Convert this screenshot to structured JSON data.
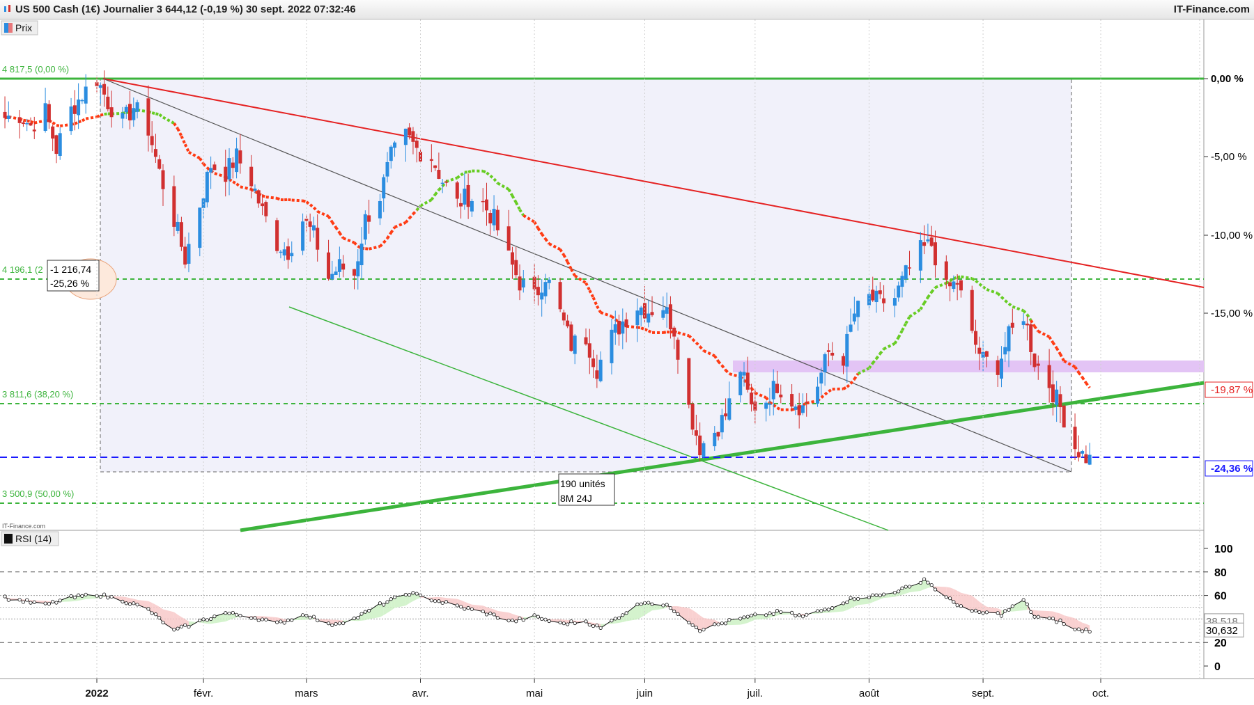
{
  "window": {
    "title": "US 500 Cash (1€) Journalier 3 644,12 (-0,19 %) 30 sept. 2022 07:32:46",
    "brand": "IT-Finance.com"
  },
  "price_panel": {
    "legend_label": "Prix",
    "watermark": "IT-Finance.com",
    "fib_levels": [
      {
        "label": "4 817,5 (0,00 %)",
        "value": 4817.5,
        "right_label": "0,00 %"
      },
      {
        "label": "4 196,1 (2",
        "value": 4196.1
      },
      {
        "label": "3 811,6 (38,20 %)",
        "value": 3811.6
      },
      {
        "label": "3 500,9 (50,00 %)",
        "value": 3500.9
      }
    ],
    "pct_axis": [
      "0,00 %",
      "-5,00 %",
      "-10,00 %",
      "-15,00 %",
      "-19,87 %",
      "-24,36 %"
    ],
    "annotation_box": {
      "line1": "-1 216,74",
      "line2": "-25,26 %"
    },
    "duration_box": {
      "line1": "190 unités",
      "line2": "8M 24J"
    }
  },
  "rsi_panel": {
    "legend_label": "RSI (14)",
    "axis": [
      "100",
      "80",
      "60",
      "20",
      "0"
    ],
    "value_labels": [
      "38,518",
      "30,632"
    ]
  },
  "x_axis": {
    "labels": [
      "2022",
      "févr.",
      "mars",
      "avr.",
      "mai",
      "juin",
      "juil.",
      "août",
      "sept.",
      "oct."
    ]
  },
  "colors": {
    "bull": "#2b8de0",
    "bear": "#d13030",
    "fib": "#3cb43c",
    "trend_red": "#e52222",
    "ma_fast": "#ff3a12",
    "ma_slow": "#66cc22",
    "blue_dash": "#1a1aff",
    "zone": "#e3c4f5"
  },
  "chart_data": {
    "type": "candlestick",
    "symbol": "US 500 Cash (1€)",
    "timeframe": "Journalier",
    "last": 3644.12,
    "change_pct": -0.19,
    "y_axis_pct": {
      "ticks": [
        0,
        -5,
        -10,
        -15
      ],
      "markers": [
        -19.87,
        -24.36
      ]
    },
    "anchor_close": [
      [
        "2021-12-09",
        -2.5
      ],
      [
        "2021-12-13",
        -2.3
      ],
      [
        "2021-12-16",
        -3.0
      ],
      [
        "2021-12-20",
        -2.1
      ],
      [
        "2021-12-23",
        -4.5
      ],
      [
        "2021-12-27",
        -2.0
      ],
      [
        "2021-12-30",
        -1.0
      ],
      [
        "2022-01-03",
        0.0
      ],
      [
        "2022-01-06",
        -1.5
      ],
      [
        "2022-01-10",
        -2.8
      ],
      [
        "2022-01-13",
        -1.8
      ],
      [
        "2022-01-17",
        -3.2
      ],
      [
        "2022-01-20",
        -6.0
      ],
      [
        "2022-01-24",
        -9.0
      ],
      [
        "2022-01-27",
        -11.5
      ],
      [
        "2022-01-31",
        -8.0
      ],
      [
        "2022-02-03",
        -5.5
      ],
      [
        "2022-02-07",
        -6.0
      ],
      [
        "2022-02-10",
        -5.0
      ],
      [
        "2022-02-14",
        -6.5
      ],
      [
        "2022-02-17",
        -8.5
      ],
      [
        "2022-02-21",
        -10.5
      ],
      [
        "2022-02-24",
        -11.0
      ],
      [
        "2022-02-28",
        -9.0
      ],
      [
        "2022-03-03",
        -10.0
      ],
      [
        "2022-03-07",
        -12.7
      ],
      [
        "2022-03-10",
        -12.0
      ],
      [
        "2022-03-14",
        -12.5
      ],
      [
        "2022-03-17",
        -9.0
      ],
      [
        "2022-03-21",
        -7.5
      ],
      [
        "2022-03-24",
        -5.0
      ],
      [
        "2022-03-28",
        -3.7
      ],
      [
        "2022-03-31",
        -4.5
      ],
      [
        "2022-04-04",
        -5.0
      ],
      [
        "2022-04-07",
        -6.5
      ],
      [
        "2022-04-11",
        -8.0
      ],
      [
        "2022-04-14",
        -7.5
      ],
      [
        "2022-04-18",
        -8.0
      ],
      [
        "2022-04-21",
        -9.0
      ],
      [
        "2022-04-25",
        -11.5
      ],
      [
        "2022-04-28",
        -13.0
      ],
      [
        "2022-05-02",
        -14.0
      ],
      [
        "2022-05-05",
        -12.5
      ],
      [
        "2022-05-09",
        -15.0
      ],
      [
        "2022-05-12",
        -17.0
      ],
      [
        "2022-05-16",
        -16.5
      ],
      [
        "2022-05-19",
        -18.5
      ],
      [
        "2022-05-23",
        -16.5
      ],
      [
        "2022-05-26",
        -15.5
      ],
      [
        "2022-05-30",
        -14.5
      ],
      [
        "2022-06-02",
        -14.8
      ],
      [
        "2022-06-06",
        -14.5
      ],
      [
        "2022-06-09",
        -16.0
      ],
      [
        "2022-06-13",
        -21.0
      ],
      [
        "2022-06-16",
        -23.5
      ],
      [
        "2022-06-20",
        -22.5
      ],
      [
        "2022-06-23",
        -21.5
      ],
      [
        "2022-06-27",
        -18.5
      ],
      [
        "2022-06-30",
        -21.0
      ],
      [
        "2022-07-04",
        -20.5
      ],
      [
        "2022-07-07",
        -19.5
      ],
      [
        "2022-07-11",
        -20.5
      ],
      [
        "2022-07-14",
        -21.0
      ],
      [
        "2022-07-18",
        -19.5
      ],
      [
        "2022-07-21",
        -17.5
      ],
      [
        "2022-07-25",
        -17.8
      ],
      [
        "2022-07-28",
        -15.0
      ],
      [
        "2022-08-01",
        -14.0
      ],
      [
        "2022-08-04",
        -14.3
      ],
      [
        "2022-08-08",
        -14.0
      ],
      [
        "2022-08-11",
        -12.5
      ],
      [
        "2022-08-15",
        -11.0
      ],
      [
        "2022-08-18",
        -10.6
      ],
      [
        "2022-08-22",
        -13.5
      ],
      [
        "2022-08-25",
        -13.0
      ],
      [
        "2022-08-29",
        -16.5
      ],
      [
        "2022-09-01",
        -18.0
      ],
      [
        "2022-09-05",
        -18.3
      ],
      [
        "2022-09-08",
        -16.5
      ],
      [
        "2022-09-12",
        -15.0
      ],
      [
        "2022-09-15",
        -18.0
      ],
      [
        "2022-09-19",
        -19.5
      ],
      [
        "2022-09-22",
        -21.0
      ],
      [
        "2022-09-26",
        -23.5
      ],
      [
        "2022-09-28",
        -24.0
      ],
      [
        "2022-09-30",
        -24.36
      ]
    ],
    "rsi_anchor": [
      [
        "2021-12-09",
        58
      ],
      [
        "2021-12-20",
        52
      ],
      [
        "2021-12-27",
        58
      ],
      [
        "2022-01-03",
        61
      ],
      [
        "2022-01-10",
        56
      ],
      [
        "2022-01-17",
        48
      ],
      [
        "2022-01-24",
        30
      ],
      [
        "2022-01-31",
        38
      ],
      [
        "2022-02-07",
        45
      ],
      [
        "2022-02-14",
        42
      ],
      [
        "2022-02-21",
        36
      ],
      [
        "2022-03-01",
        44
      ],
      [
        "2022-03-07",
        35
      ],
      [
        "2022-03-14",
        40
      ],
      [
        "2022-03-21",
        52
      ],
      [
        "2022-03-29",
        62
      ],
      [
        "2022-04-05",
        56
      ],
      [
        "2022-04-12",
        50
      ],
      [
        "2022-04-19",
        45
      ],
      [
        "2022-04-26",
        38
      ],
      [
        "2022-05-02",
        42
      ],
      [
        "2022-05-09",
        36
      ],
      [
        "2022-05-16",
        38
      ],
      [
        "2022-05-20",
        32
      ],
      [
        "2022-05-27",
        46
      ],
      [
        "2022-06-01",
        55
      ],
      [
        "2022-06-08",
        50
      ],
      [
        "2022-06-16",
        31
      ],
      [
        "2022-06-24",
        38
      ],
      [
        "2022-06-30",
        42
      ],
      [
        "2022-07-08",
        46
      ],
      [
        "2022-07-14",
        42
      ],
      [
        "2022-07-20",
        48
      ],
      [
        "2022-07-28",
        58
      ],
      [
        "2022-08-04",
        60
      ],
      [
        "2022-08-12",
        67
      ],
      [
        "2022-08-16",
        74
      ],
      [
        "2022-08-22",
        58
      ],
      [
        "2022-08-29",
        46
      ],
      [
        "2022-09-06",
        44
      ],
      [
        "2022-09-12",
        56
      ],
      [
        "2022-09-15",
        42
      ],
      [
        "2022-09-22",
        38
      ],
      [
        "2022-09-26",
        30.6
      ],
      [
        "2022-09-30",
        30.6
      ]
    ],
    "moving_averages": [
      {
        "name": "fast",
        "color": "#ff3a12",
        "last_pct": -19.87
      },
      {
        "name": "slow",
        "color": "#66cc22"
      }
    ],
    "fibonacci": [
      {
        "pct": 0.0,
        "value": 4817.5
      },
      {
        "pct": 38.2,
        "value": 3811.6
      },
      {
        "pct": 50.0,
        "value": 3500.9
      }
    ],
    "measurement": {
      "from": "2022-01-03",
      "to": "2022-09-30",
      "delta": -1216.74,
      "delta_pct": -25.26,
      "bars": 190,
      "duration": "8M 24J"
    },
    "rsi": {
      "period": 14,
      "current": 30.632,
      "other": 38.518,
      "levels": [
        80,
        60,
        20
      ]
    }
  }
}
